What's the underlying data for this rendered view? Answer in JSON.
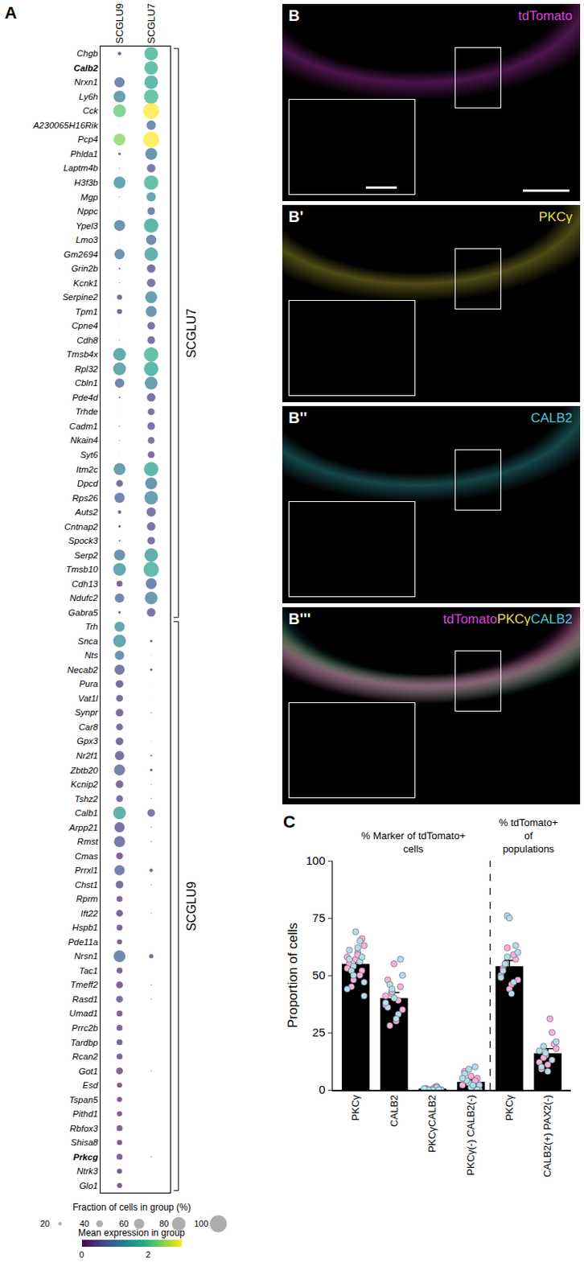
{
  "chart_data": [
    {
      "type": "dotplot",
      "panel": "A",
      "categories": [
        "SCGLU9",
        "SCGLU7"
      ],
      "genes": [
        "Chgb",
        "Calb2",
        "Nrxn1",
        "Ly6h",
        "Cck",
        "A230065H16Rik",
        "Pcp4",
        "Phlda1",
        "Laptm4b",
        "H3f3b",
        "Mgp",
        "Nppc",
        "Ypel3",
        "Lmo3",
        "Gm2694",
        "Grin2b",
        "Kcnk1",
        "Serpine2",
        "Tpm1",
        "Cpne4",
        "Cdh8",
        "Tmsb4x",
        "Rpl32",
        "Cbln1",
        "Pde4d",
        "Trhde",
        "Cadm1",
        "Nkain4",
        "Syt6",
        "Itm2c",
        "Dpcd",
        "Rps26",
        "Auts2",
        "Cntnap2",
        "Spock3",
        "Serp2",
        "Tmsb10",
        "Cdh13",
        "Ndufc2",
        "Gabra5",
        "Trh",
        "Snca",
        "Nts",
        "Necab2",
        "Pura",
        "Vat1l",
        "Synpr",
        "Car8",
        "Gpx3",
        "Nr2f1",
        "Zbtb20",
        "Kcnip2",
        "Tshz2",
        "Calb1",
        "Arpp21",
        "Rmst",
        "Cmas",
        "Prrxl1",
        "Chst1",
        "Rprm",
        "Ift22",
        "Hspb1",
        "Pde11a",
        "Nrsn1",
        "Tac1",
        "Tmeff2",
        "Rasd1",
        "Umad1",
        "Prrc2b",
        "Tardbp",
        "Rcan2",
        "Got1",
        "Esd",
        "Tspan5",
        "Pithd1",
        "Rbfox3",
        "Shisa8",
        "Prkcg",
        "Ntrk3",
        "Glo1"
      ],
      "bold": [
        "Calb2",
        "Prkcg"
      ],
      "groups": [
        {
          "name": "SCGLU7",
          "first": "Chgb",
          "last": "Gabra5"
        },
        {
          "name": "SCGLU9",
          "first": "Trh",
          "last": "Glo1"
        }
      ],
      "series": [
        {
          "name": "SCGLU9",
          "fraction": [
            20,
            0,
            60,
            70,
            75,
            3,
            70,
            15,
            5,
            70,
            5,
            3,
            65,
            3,
            60,
            10,
            5,
            30,
            30,
            3,
            5,
            75,
            75,
            55,
            10,
            3,
            5,
            5,
            3,
            70,
            40,
            60,
            20,
            15,
            10,
            65,
            75,
            35,
            55,
            15,
            60,
            75,
            55,
            60,
            45,
            40,
            45,
            40,
            45,
            55,
            65,
            45,
            40,
            75,
            60,
            65,
            40,
            60,
            45,
            35,
            40,
            35,
            30,
            70,
            35,
            40,
            40,
            35,
            35,
            35,
            35,
            40,
            30,
            30,
            30,
            35,
            30,
            35,
            30,
            30
          ],
          "expression": [
            0.3,
            0,
            0.8,
            1.2,
            2.2,
            0.1,
            2.4,
            0.2,
            0.1,
            1.3,
            0.1,
            0.1,
            1.0,
            0.1,
            1.0,
            0.2,
            0.1,
            0.4,
            0.3,
            0.1,
            0.1,
            1.4,
            1.3,
            0.8,
            0.2,
            0.1,
            0.1,
            0.1,
            0.1,
            1.2,
            0.4,
            0.8,
            0.2,
            0.2,
            0.2,
            1.0,
            1.3,
            0.3,
            0.8,
            0.2,
            1.3,
            1.3,
            1.0,
            0.6,
            0.4,
            0.4,
            0.4,
            0.4,
            0.4,
            0.5,
            0.7,
            0.4,
            0.4,
            1.5,
            0.5,
            0.6,
            0.3,
            0.7,
            0.4,
            0.3,
            0.3,
            0.3,
            0.2,
            0.8,
            0.3,
            0.3,
            0.4,
            0.3,
            0.3,
            0.3,
            0.3,
            0.3,
            0.2,
            0.2,
            0.2,
            0.3,
            0.2,
            0.3,
            0.2,
            0.2
          ]
        },
        {
          "name": "SCGLU7",
          "fraction": [
            80,
            80,
            80,
            85,
            95,
            55,
            95,
            70,
            50,
            85,
            55,
            45,
            85,
            60,
            80,
            50,
            50,
            70,
            65,
            45,
            45,
            85,
            85,
            75,
            50,
            40,
            45,
            40,
            40,
            85,
            70,
            80,
            55,
            50,
            45,
            80,
            90,
            65,
            75,
            50,
            0,
            15,
            2,
            15,
            2,
            2,
            5,
            0,
            3,
            10,
            15,
            5,
            5,
            45,
            5,
            5,
            0,
            20,
            5,
            0,
            5,
            0,
            0,
            25,
            0,
            5,
            5,
            0,
            0,
            0,
            0,
            5,
            0,
            0,
            0,
            0,
            0,
            5,
            0,
            0
          ],
          "expression": [
            1.8,
            1.8,
            1.7,
            1.9,
            3.0,
            0.9,
            3.0,
            1.0,
            0.6,
            1.8,
            1.3,
            0.8,
            1.6,
            0.9,
            1.5,
            0.5,
            0.6,
            1.2,
            1.0,
            0.5,
            0.5,
            1.8,
            1.6,
            1.2,
            0.5,
            0.5,
            0.5,
            0.5,
            0.4,
            1.6,
            1.0,
            1.2,
            0.6,
            0.5,
            0.5,
            1.4,
            1.7,
            0.8,
            1.1,
            0.5,
            0,
            0.2,
            0.1,
            0.2,
            0.1,
            0.1,
            0.1,
            0,
            0.1,
            0.1,
            0.2,
            0.1,
            0.1,
            0.6,
            0.1,
            0.1,
            0,
            0.3,
            0.1,
            0,
            0.1,
            0,
            0,
            0.3,
            0,
            0.1,
            0.1,
            0,
            0,
            0,
            0,
            0.1,
            0,
            0,
            0,
            0,
            0,
            0.1,
            0,
            0
          ]
        }
      ],
      "size_legend": {
        "title": "Fraction of cells in group (%)",
        "values": [
          20,
          40,
          60,
          80,
          100
        ]
      },
      "colorbar": {
        "title": "Mean expression in group",
        "range": [
          0,
          3
        ],
        "ticks": [
          0,
          2
        ],
        "color": "Viridis"
      }
    },
    {
      "type": "bar",
      "panel": "C",
      "categories": [
        "PKCγ",
        "CALB2",
        "PKCγCALB2",
        "PKCγ(-) CALB2(-)",
        "PKCγ",
        "CALB2(+) PAX2(-)"
      ],
      "values": [
        55,
        40,
        0.5,
        3.5,
        54,
        16
      ],
      "errors": [
        2,
        2.5,
        0.3,
        0.8,
        2.5,
        2
      ],
      "color": "#000000",
      "groups": [
        {
          "label": "% Marker of tdTomato+ cells",
          "members": 4
        },
        {
          "label": "% tdTomato+ of populations",
          "members": 2
        }
      ],
      "points": [
        {
          "color": "#f2b3d6",
          "values": [
            [
              58,
              52,
              60,
              48,
              55,
              63,
              50,
              57,
              45,
              53,
              66,
              59
            ],
            [
              37,
              45,
              30,
              42,
              48,
              35,
              39,
              55,
              28,
              41
            ],
            [
              0,
              0,
              1,
              0,
              0.5,
              0,
              1.5,
              0
            ],
            [
              2,
              5,
              1,
              3,
              8,
              0,
              4,
              6
            ],
            [
              50,
              57,
              46,
              62,
              53,
              48,
              59,
              44,
              55
            ],
            [
              12,
              20,
              31,
              15,
              9,
              18,
              25,
              11,
              14
            ]
          ]
        },
        {
          "color": "#aee0e6",
          "values": [
            [
              54,
              61,
              47,
              56,
              69,
              52,
              44,
              58,
              62,
              50,
              57,
              41,
              65
            ],
            [
              43,
              36,
              50,
              33,
              40,
              46,
              38,
              57,
              31,
              44
            ],
            [
              0,
              0.5,
              0,
              1,
              0,
              0,
              0.5,
              0
            ],
            [
              3,
              7,
              2,
              10,
              1,
              4,
              5,
              0,
              2,
              9
            ],
            [
              76,
              52,
              60,
              47,
              75,
              55,
              49,
              63,
              42,
              58
            ],
            [
              16,
              10,
              21,
              13,
              8,
              19,
              17
            ]
          ]
        }
      ],
      "ylabel": "Proportion of cells",
      "ylim": [
        0,
        100
      ],
      "yticks": [
        0,
        25,
        50,
        75,
        100
      ]
    }
  ],
  "images": [
    {
      "panel": "B",
      "labels": [
        {
          "text": "tdTomato",
          "color": "#e040e0"
        }
      ]
    },
    {
      "panel": "B'",
      "labels": [
        {
          "text": "PKCγ",
          "color": "#e8e040"
        }
      ]
    },
    {
      "panel": "B''",
      "labels": [
        {
          "text": "CALB2",
          "color": "#40d0dc"
        }
      ]
    },
    {
      "panel": "B'''",
      "labels": [
        {
          "text": "tdTomato",
          "color": "#e040e0"
        },
        {
          "text": "PKCγ",
          "color": "#e8e040"
        },
        {
          "text": "CALB2",
          "color": "#40d0dc"
        }
      ]
    }
  ]
}
